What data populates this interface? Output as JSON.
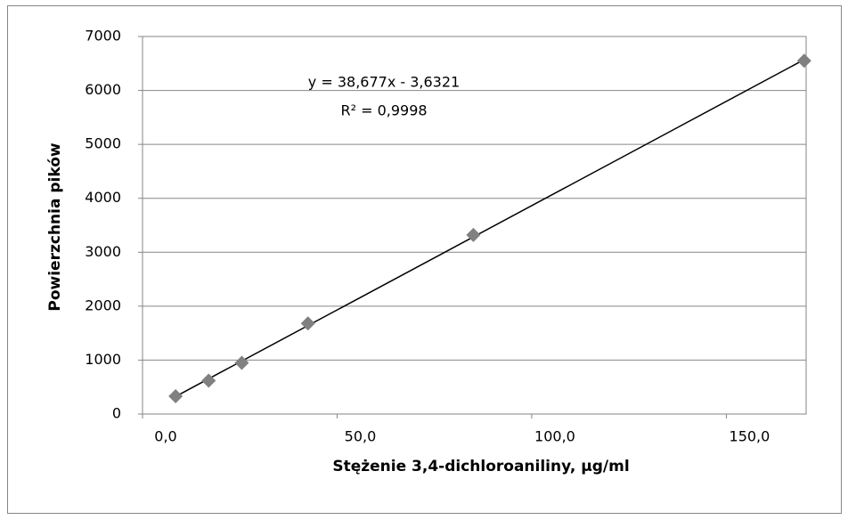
{
  "chart_data": {
    "type": "scatter",
    "x_label": "Stężenie 3,4-dichloroaniliny,  µg/ml",
    "y_label": "Powierzchnia pików",
    "series": [
      {
        "color": "#808080",
        "x": [
          8.5,
          17,
          25.5,
          42.5,
          85,
          170
        ],
        "values": [
          330,
          620,
          950,
          1680,
          3320,
          6550
        ]
      }
    ],
    "trendline": {
      "slope": 38.677,
      "intercept": -3.6321,
      "color": "#000000",
      "equation": "y = 38,677x - 3,6321",
      "r2": "R² = 0,9998"
    },
    "xlim": [
      0,
      170.5
    ],
    "xticks": [
      {
        "value": 0,
        "label": "0,0"
      },
      {
        "value": 50,
        "label": "50,0"
      },
      {
        "value": 100,
        "label": "100,0"
      },
      {
        "value": 150,
        "label": "150,0"
      }
    ],
    "ylim": [
      0,
      7000
    ],
    "yticks": [
      0,
      1000,
      2000,
      3000,
      4000,
      5000,
      6000,
      7000
    ],
    "grid": true
  }
}
